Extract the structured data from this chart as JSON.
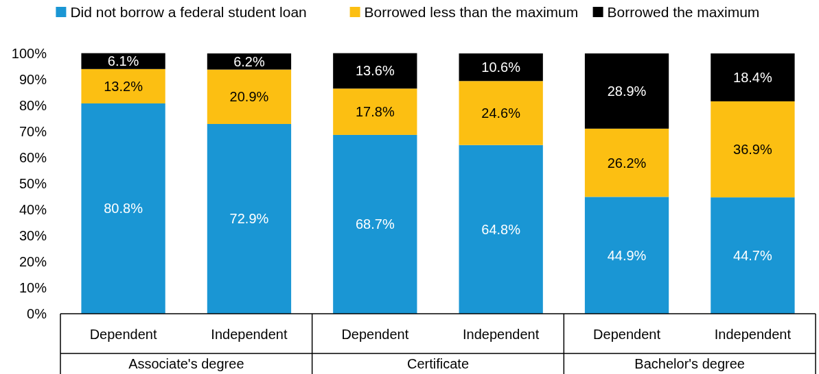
{
  "chart_data": {
    "type": "bar",
    "stacked": true,
    "categories": [
      "Dependent",
      "Independent",
      "Dependent",
      "Independent",
      "Dependent",
      "Independent"
    ],
    "annotations": [
      "Associate's degree",
      "Certificate",
      "Bachelor's degree"
    ],
    "series": [
      {
        "name": "Did not borrow a federal student loan",
        "color": "#1a96d4",
        "values": [
          80.8,
          72.9,
          68.7,
          64.8,
          44.9,
          44.7
        ],
        "value_labels": [
          "80.8%",
          "72.9%",
          "68.7%",
          "64.8%",
          "44.9%",
          "44.7%"
        ]
      },
      {
        "name": "Borrowed less than the maximum",
        "color": "#fcbf12",
        "values": [
          13.2,
          20.9,
          17.8,
          24.6,
          26.2,
          36.9
        ],
        "value_labels": [
          "13.2%",
          "20.9%",
          "17.8%",
          "24.6%",
          "26.2%",
          "36.9%"
        ]
      },
      {
        "name": "Borrowed the maximum",
        "color": "#000000",
        "values": [
          6.1,
          6.2,
          13.6,
          10.6,
          28.9,
          18.4
        ],
        "value_labels": [
          "6.1%",
          "6.2%",
          "13.6%",
          "10.6%",
          "28.9%",
          "18.4%"
        ]
      }
    ],
    "ylim": [
      0,
      100
    ],
    "yticks": [
      {
        "value": 0,
        "label": "0%"
      },
      {
        "value": 10,
        "label": "10%"
      },
      {
        "value": 20,
        "label": "20%"
      },
      {
        "value": 30,
        "label": "30%"
      },
      {
        "value": 40,
        "label": "40%"
      },
      {
        "value": 50,
        "label": "50%"
      },
      {
        "value": 60,
        "label": "60%"
      },
      {
        "value": 70,
        "label": "70%"
      },
      {
        "value": 80,
        "label": "80%"
      },
      {
        "value": 90,
        "label": "90%"
      },
      {
        "value": 100,
        "label": "100%"
      }
    ],
    "legend": "top"
  }
}
